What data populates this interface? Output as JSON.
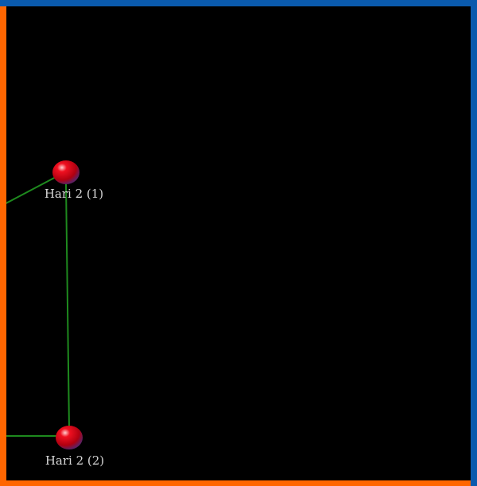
{
  "colors": {
    "background": "#000000",
    "border_top_right": "#0a5aad",
    "border_left_bottom": "#ff6600",
    "edge": "#1e8a1e",
    "node": "#e00010"
  },
  "nodes": [
    {
      "label": "Hari 2 (1)"
    },
    {
      "label": "Hari 2 (2)"
    }
  ],
  "edges": [
    {
      "from": "offscreen-left",
      "to": "Hari 2 (1)"
    },
    {
      "from": "Hari 2 (1)",
      "to": "Hari 2 (2)"
    },
    {
      "from": "offscreen-left",
      "to": "Hari 2 (2)"
    }
  ]
}
